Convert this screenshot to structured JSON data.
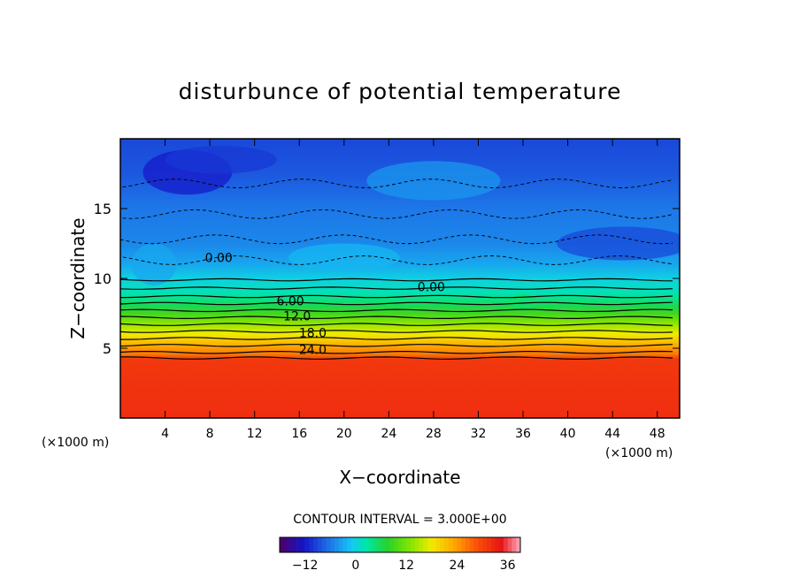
{
  "chart_data": {
    "type": "heatmap",
    "title": "disturbunce of potential temperature",
    "xlabel": "X−coordinate",
    "ylabel": "Z−coordinate",
    "x_unit_left": "(×1000 m)",
    "x_unit_right": "(×1000 m)",
    "xlim": [
      0,
      50
    ],
    "ylim": [
      0,
      20
    ],
    "x_ticks": [
      4,
      8,
      12,
      16,
      20,
      24,
      28,
      32,
      36,
      40,
      44,
      48
    ],
    "x_tick_labels": [
      "4",
      "8",
      "12",
      "16",
      "20",
      "24",
      "28",
      "32",
      "36",
      "40",
      "44",
      "48"
    ],
    "y_ticks": [
      5,
      10,
      15
    ],
    "y_tick_labels": [
      "5",
      "10",
      "15"
    ],
    "contour_interval_label": "CONTOUR INTERVAL = 3.000E+00",
    "contour_interval": 3,
    "contour_labels": [
      {
        "text": "0.00",
        "x": 8.8,
        "z": 11.5
      },
      {
        "text": "0.00",
        "x": 27.8,
        "z": 9.4
      },
      {
        "text": "6.00",
        "x": 15.2,
        "z": 8.4
      },
      {
        "text": "12.0",
        "x": 15.8,
        "z": 7.3
      },
      {
        "text": "18.0",
        "x": 17.2,
        "z": 6.1
      },
      {
        "text": "24.0",
        "x": 17.2,
        "z": 4.9
      }
    ],
    "colorbar": {
      "min": -18,
      "max": 39,
      "tick_values": [
        -12,
        0,
        12,
        24,
        36
      ],
      "tick_labels": [
        "−12",
        "0",
        "12",
        "24",
        "36"
      ]
    },
    "field_profile": {
      "z": [
        0,
        4.2,
        4.6,
        5.0,
        5.5,
        6.0,
        6.5,
        7.0,
        7.5,
        8.0,
        8.5,
        9.0,
        9.5,
        10.0,
        11.0,
        12.5,
        15.0,
        17.5,
        20.0
      ],
      "value": [
        32,
        31,
        26,
        24,
        21,
        18,
        15,
        12,
        9,
        6,
        4,
        2,
        1,
        0,
        -3,
        -5,
        -6,
        -8,
        -9
      ]
    }
  }
}
